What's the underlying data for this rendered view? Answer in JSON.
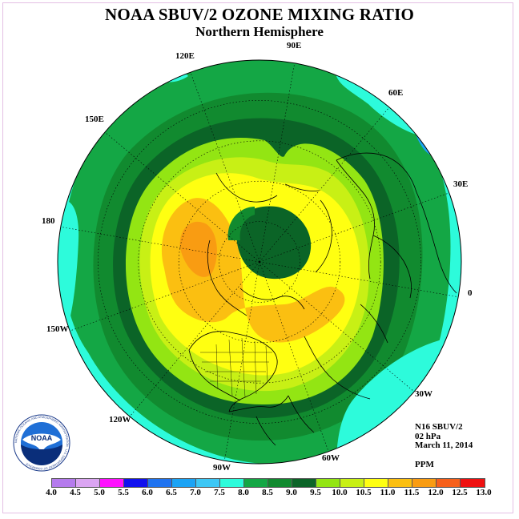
{
  "header": {
    "title": "NOAA SBUV/2 OZONE MIXING RATIO",
    "subtitle": "Northern Hemisphere"
  },
  "longitude_labels": [
    {
      "text": "90E",
      "lon": 90
    },
    {
      "text": "60E",
      "lon": 60
    },
    {
      "text": "30E",
      "lon": 30
    },
    {
      "text": "0",
      "lon": 0
    },
    {
      "text": "30W",
      "lon": -30
    },
    {
      "text": "60W",
      "lon": -60
    },
    {
      "text": "90W",
      "lon": -90
    },
    {
      "text": "120W",
      "lon": -120
    },
    {
      "text": "150W",
      "lon": -150
    },
    {
      "text": "180",
      "lon": 180
    },
    {
      "text": "150E",
      "lon": 150
    },
    {
      "text": "120E",
      "lon": 120
    }
  ],
  "info": {
    "satellite": "N16 SBUV/2",
    "level": "02 hPa",
    "date": "March 11, 2014",
    "units": "PPM"
  },
  "legend": {
    "ticks": [
      "4.0",
      "4.5",
      "5.0",
      "5.5",
      "6.0",
      "6.5",
      "7.0",
      "7.5",
      "8.0",
      "8.5",
      "9.0",
      "9.5",
      "10.0",
      "10.5",
      "11.0",
      "11.5",
      "12.0",
      "12.5",
      "13.0"
    ],
    "colors": [
      "#b57bed",
      "#dba5f2",
      "#ff11ff",
      "#1111ee",
      "#1f73f0",
      "#1ba3f5",
      "#3dc7f5",
      "#2dfbdb",
      "#14a745",
      "#118a2f",
      "#0b6427",
      "#93e513",
      "#c8f015",
      "#ffff11",
      "#fbbf11",
      "#f99c12",
      "#f6601b",
      "#ef1111",
      "#8a5a3c"
    ]
  },
  "logo": {
    "text": "NOAA",
    "ring_text": "NATIONAL OCEANIC AND ATMOSPHERIC ADMINISTRATION · U.S. DEPARTMENT OF COMMERCE"
  },
  "map_data": {
    "projection": "north-polar-stereographic",
    "colors": {
      "ring_8_0": "#2dfbdb",
      "ring_8_5": "#14a745",
      "ring_9_0": "#118a2f",
      "ring_9_5": "#0b6427",
      "ring_10_0": "#93e513",
      "ring_10_5": "#c8f015",
      "ring_11_0": "#ffff11",
      "ring_11_5": "#fbbf11",
      "ring_12_0": "#f99c12",
      "low_7_5": "#1ba3f5"
    }
  }
}
